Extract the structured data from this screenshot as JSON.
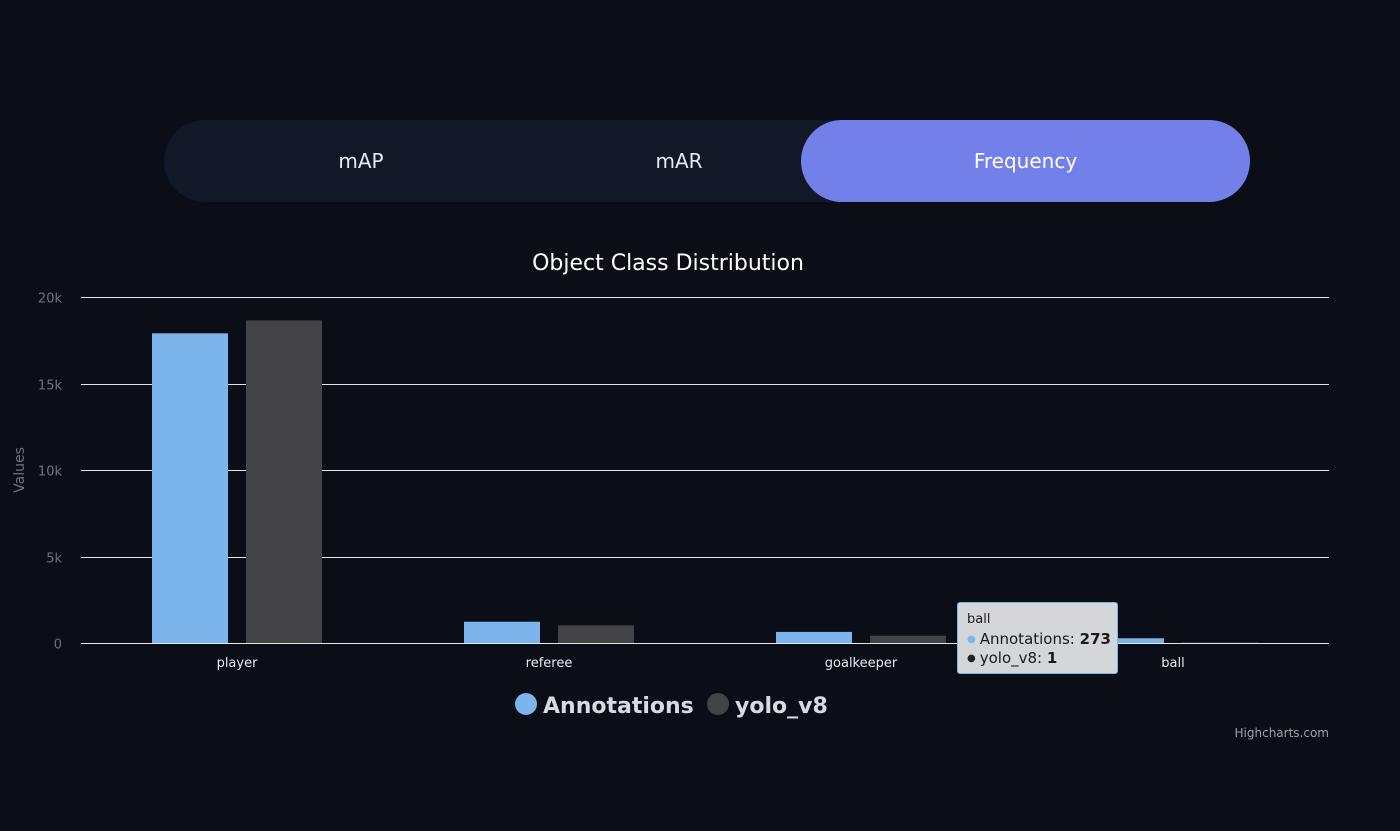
{
  "tabs": [
    {
      "label": "mAP",
      "active": false
    },
    {
      "label": "mAR",
      "active": false
    },
    {
      "label": "Frequency",
      "active": true
    }
  ],
  "colors": {
    "annotations": "#7cb5ec",
    "yolo_v8": "#434348",
    "accent": "#7480ea",
    "background": "#0b0e17",
    "grid": "#e6e6e6"
  },
  "chart_data": {
    "type": "bar",
    "title": "Object Class Distribution",
    "ylabel": "Values",
    "xlabel": "",
    "categories": [
      "player",
      "referee",
      "goalkeeper",
      "ball"
    ],
    "series": [
      {
        "name": "Annotations",
        "values": [
          17900,
          1230,
          640,
          273
        ]
      },
      {
        "name": "yolo_v8",
        "values": [
          18650,
          1020,
          420,
          1
        ]
      }
    ],
    "ylim": [
      0,
      20000
    ],
    "yticks": [
      {
        "value": 0,
        "label": "0"
      },
      {
        "value": 5000,
        "label": "5k"
      },
      {
        "value": 10000,
        "label": "10k"
      },
      {
        "value": 15000,
        "label": "15k"
      },
      {
        "value": 20000,
        "label": "20k"
      }
    ],
    "grid": true,
    "legend": "bottom-center"
  },
  "tooltip": {
    "title": "ball",
    "rows": [
      {
        "label": "Annotations: ",
        "value": "273"
      },
      {
        "label": "yolo_v8: ",
        "value": "1"
      }
    ]
  },
  "credits": "Highcharts.com"
}
